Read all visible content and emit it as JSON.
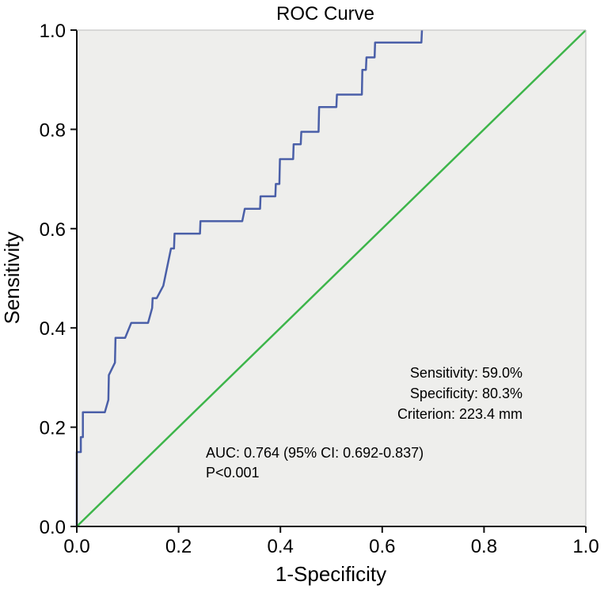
{
  "chart_data": {
    "type": "line",
    "title": "ROC Curve",
    "xlabel": "1-Specificity",
    "ylabel": "Sensitivity",
    "xlim": [
      0.0,
      1.0
    ],
    "ylim": [
      0.0,
      1.0
    ],
    "x_ticks": [
      "0.0",
      "0.2",
      "0.4",
      "0.6",
      "0.8",
      "1.0"
    ],
    "y_ticks": [
      "0.0",
      "0.2",
      "0.4",
      "0.6",
      "0.8",
      "1.0"
    ],
    "grid": false,
    "background_color": "#eeeeec",
    "series": [
      {
        "color": "#4a5fa8",
        "points": [
          [
            0.0,
            0.0
          ],
          [
            0.0,
            0.15
          ],
          [
            0.008,
            0.15
          ],
          [
            0.008,
            0.18
          ],
          [
            0.012,
            0.18
          ],
          [
            0.012,
            0.23
          ],
          [
            0.055,
            0.23
          ],
          [
            0.062,
            0.255
          ],
          [
            0.063,
            0.305
          ],
          [
            0.075,
            0.33
          ],
          [
            0.076,
            0.38
          ],
          [
            0.095,
            0.38
          ],
          [
            0.107,
            0.41
          ],
          [
            0.14,
            0.41
          ],
          [
            0.148,
            0.44
          ],
          [
            0.149,
            0.46
          ],
          [
            0.157,
            0.46
          ],
          [
            0.17,
            0.485
          ],
          [
            0.185,
            0.56
          ],
          [
            0.191,
            0.56
          ],
          [
            0.192,
            0.59
          ],
          [
            0.242,
            0.59
          ],
          [
            0.243,
            0.615
          ],
          [
            0.325,
            0.615
          ],
          [
            0.33,
            0.64
          ],
          [
            0.36,
            0.64
          ],
          [
            0.361,
            0.665
          ],
          [
            0.39,
            0.665
          ],
          [
            0.391,
            0.69
          ],
          [
            0.398,
            0.69
          ],
          [
            0.399,
            0.74
          ],
          [
            0.425,
            0.74
          ],
          [
            0.426,
            0.77
          ],
          [
            0.44,
            0.77
          ],
          [
            0.441,
            0.795
          ],
          [
            0.475,
            0.795
          ],
          [
            0.476,
            0.845
          ],
          [
            0.51,
            0.845
          ],
          [
            0.511,
            0.87
          ],
          [
            0.56,
            0.87
          ],
          [
            0.561,
            0.92
          ],
          [
            0.568,
            0.92
          ],
          [
            0.569,
            0.945
          ],
          [
            0.585,
            0.945
          ],
          [
            0.586,
            0.975
          ],
          [
            0.677,
            0.975
          ],
          [
            0.678,
            1.0
          ]
        ]
      },
      {
        "color": "#3db54a",
        "points": [
          [
            0.0,
            0.0
          ],
          [
            1.0,
            1.0
          ]
        ]
      }
    ],
    "annotations": {
      "sensitivity": "Sensitivity: 59.0%",
      "specificity": "Specificity: 80.3%",
      "criterion": "Criterion: 223.4 mm",
      "auc": "AUC: 0.764 (95% CI: 0.692-0.837)",
      "p_value": "P<0.001"
    }
  }
}
